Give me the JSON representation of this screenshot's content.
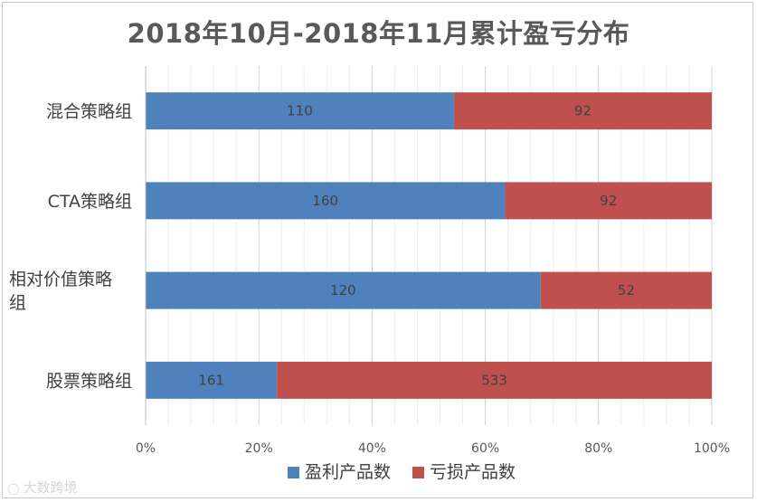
{
  "chart_data": {
    "type": "bar",
    "orientation": "horizontal",
    "stacked": "percent",
    "title": "2018年10月-2018年11月累计盈亏分布",
    "categories": [
      "混合策略组",
      "CTA策略组",
      "相对价值策略组",
      "股票策略组"
    ],
    "series": [
      {
        "name": "盈利产品数",
        "color": "#4f81bd",
        "values": [
          110,
          160,
          120,
          161
        ]
      },
      {
        "name": "亏损产品数",
        "color": "#c0504d",
        "values": [
          92,
          92,
          52,
          533
        ]
      }
    ],
    "x_ticks": [
      "0%",
      "20%",
      "40%",
      "60%",
      "80%",
      "100%"
    ],
    "xlim": [
      0,
      100
    ],
    "grid": true,
    "legend_position": "bottom"
  },
  "watermark": {
    "text": "大数跨境",
    "icon": "brand-logo-icon"
  }
}
